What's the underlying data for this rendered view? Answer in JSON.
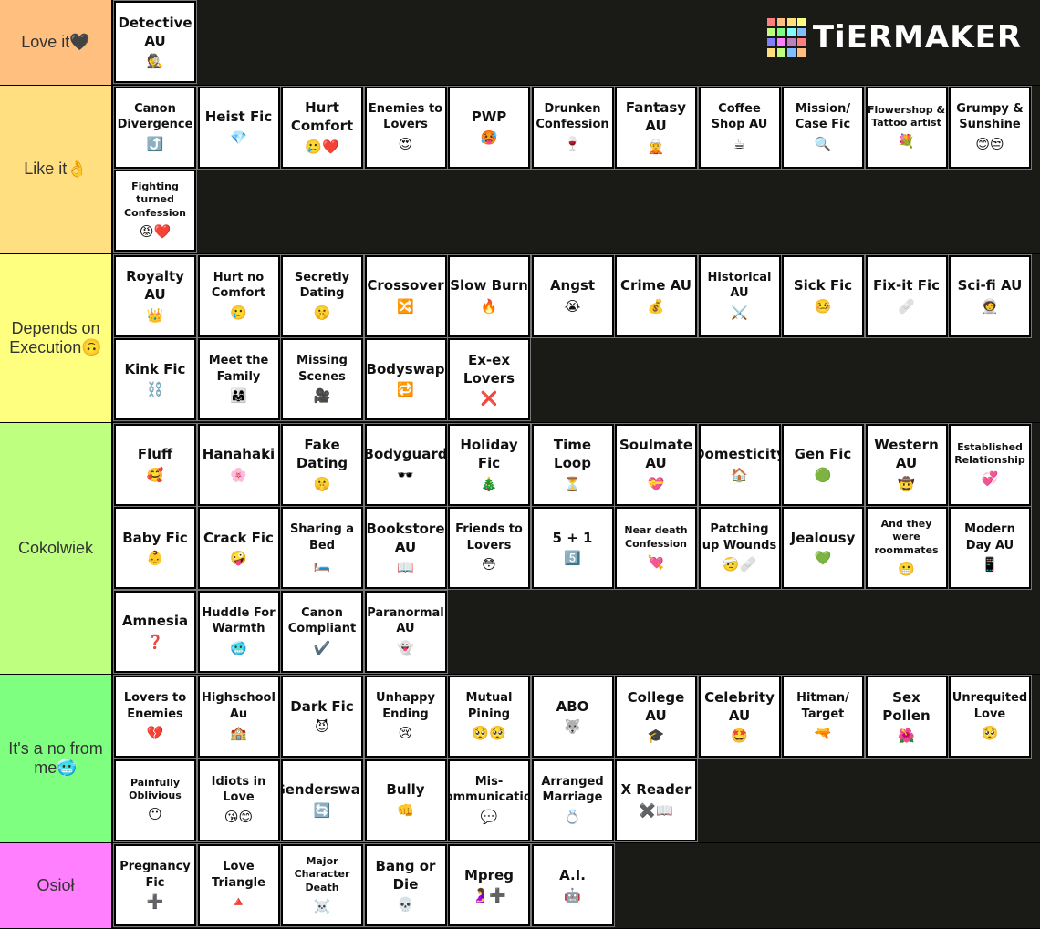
{
  "logo": "TiERMAKER",
  "tiers": [
    {
      "label": "Love it🖤",
      "color": "#ffbf7f",
      "items": [
        {
          "text": "Detective AU",
          "emoji": "🕵️"
        }
      ]
    },
    {
      "label": "Like it👌",
      "color": "#ffdf7f",
      "items": [
        {
          "text": "Canon Divergence",
          "emoji": "⤴️"
        },
        {
          "text": "Heist Fic",
          "emoji": "💎"
        },
        {
          "text": "Hurt Comfort",
          "emoji": "🥲❤️"
        },
        {
          "text": "Enemies to Lovers",
          "emoji": "😍"
        },
        {
          "text": "PWP",
          "emoji": "🥵"
        },
        {
          "text": "Drunken Confession",
          "emoji": "🍷"
        },
        {
          "text": "Fantasy AU",
          "emoji": "🧝"
        },
        {
          "text": "Coffee Shop AU",
          "emoji": "☕"
        },
        {
          "text": "Mission/ Case Fic",
          "emoji": "🔍"
        },
        {
          "text": "Flowershop & Tattoo artist",
          "emoji": "💐"
        },
        {
          "text": "Grumpy & Sunshine",
          "emoji": "😊😒"
        },
        {
          "text": "Fighting turned Confession",
          "emoji": "😡❤️"
        }
      ]
    },
    {
      "label": "Depends on Execution🙃",
      "color": "#ffff7f",
      "items": [
        {
          "text": "Royalty AU",
          "emoji": "👑"
        },
        {
          "text": "Hurt no Comfort",
          "emoji": "🥲"
        },
        {
          "text": "Secretly Dating",
          "emoji": "🤫"
        },
        {
          "text": "Crossover",
          "emoji": "🔀"
        },
        {
          "text": "Slow Burn",
          "emoji": "🔥"
        },
        {
          "text": "Angst",
          "emoji": "😭"
        },
        {
          "text": "Crime AU",
          "emoji": "💰"
        },
        {
          "text": "Historical AU",
          "emoji": "⚔️"
        },
        {
          "text": "Sick Fic",
          "emoji": "🤒"
        },
        {
          "text": "Fix-it Fic",
          "emoji": "🩹"
        },
        {
          "text": "Sci-fi AU",
          "emoji": "🧑‍🚀"
        },
        {
          "text": "Kink Fic",
          "emoji": "⛓️"
        },
        {
          "text": "Meet the Family",
          "emoji": "👨‍👩‍👧"
        },
        {
          "text": "Missing Scenes",
          "emoji": "🎥"
        },
        {
          "text": "Bodyswap",
          "emoji": "🔁"
        },
        {
          "text": "Ex-ex Lovers",
          "emoji": "❌"
        }
      ]
    },
    {
      "label": "Cokolwiek",
      "color": "#bfff7f",
      "items": [
        {
          "text": "Fluff",
          "emoji": "🥰"
        },
        {
          "text": "Hanahaki",
          "emoji": "🌸"
        },
        {
          "text": "Fake Dating",
          "emoji": "🤫"
        },
        {
          "text": "Bodyguard",
          "emoji": "🕶️"
        },
        {
          "text": "Holiday Fic",
          "emoji": "🎄"
        },
        {
          "text": "Time Loop",
          "emoji": "⏳"
        },
        {
          "text": "Soulmate AU",
          "emoji": "💝"
        },
        {
          "text": "Domesticity",
          "emoji": "🏠"
        },
        {
          "text": "Gen Fic",
          "emoji": "🟢"
        },
        {
          "text": "Western AU",
          "emoji": "🤠"
        },
        {
          "text": "Established Relationship",
          "emoji": "💞"
        },
        {
          "text": "Baby Fic",
          "emoji": "👶"
        },
        {
          "text": "Crack Fic",
          "emoji": "🤪"
        },
        {
          "text": "Sharing a Bed",
          "emoji": "🛏️"
        },
        {
          "text": "Bookstore AU",
          "emoji": "📖"
        },
        {
          "text": "Friends to Lovers",
          "emoji": "😳"
        },
        {
          "text": "5 + 1",
          "emoji": "5️⃣"
        },
        {
          "text": "Near death Confession",
          "emoji": "💘"
        },
        {
          "text": "Patching up Wounds",
          "emoji": "🤕🩹"
        },
        {
          "text": "Jealousy",
          "emoji": "💚"
        },
        {
          "text": "And they were roommates",
          "emoji": "😬"
        },
        {
          "text": "Modern Day AU",
          "emoji": "📱"
        },
        {
          "text": "Amnesia",
          "emoji": "❓"
        },
        {
          "text": "Huddle For Warmth",
          "emoji": "🥶"
        },
        {
          "text": "Canon Compliant",
          "emoji": "✔️"
        },
        {
          "text": "Paranormal AU",
          "emoji": "👻"
        }
      ]
    },
    {
      "label": "It's a no from me🥶",
      "color": "#7fff7f",
      "items": [
        {
          "text": "Lovers to Enemies",
          "emoji": "💔"
        },
        {
          "text": "Highschool Au",
          "emoji": "🏫"
        },
        {
          "text": "Dark Fic",
          "emoji": "😈"
        },
        {
          "text": "Unhappy Ending",
          "emoji": "😢"
        },
        {
          "text": "Mutual Pining",
          "emoji": "🥺🥺"
        },
        {
          "text": "ABO",
          "emoji": "🐺"
        },
        {
          "text": "College AU",
          "emoji": "🎓"
        },
        {
          "text": "Celebrity AU",
          "emoji": "🤩"
        },
        {
          "text": "Hitman/ Target",
          "emoji": "🔫"
        },
        {
          "text": "Sex Pollen",
          "emoji": "🌺"
        },
        {
          "text": "Unrequited Love",
          "emoji": "🥺"
        },
        {
          "text": "Painfully Oblivious",
          "emoji": "😶"
        },
        {
          "text": "Idiots in Love",
          "emoji": "😘😊"
        },
        {
          "text": "Genderswap",
          "emoji": "🔄"
        },
        {
          "text": "Bully",
          "emoji": "👊"
        },
        {
          "text": "Mis-communication",
          "emoji": "💬"
        },
        {
          "text": "Arranged Marriage",
          "emoji": "💍"
        },
        {
          "text": "X Reader",
          "emoji": "✖️📖"
        }
      ]
    },
    {
      "label": "Osioł",
      "color": "#ff7fff",
      "items": [
        {
          "text": "Pregnancy Fic",
          "emoji": "➕"
        },
        {
          "text": "Love Triangle",
          "emoji": "🔺"
        },
        {
          "text": "Major Character Death",
          "emoji": "☠️"
        },
        {
          "text": "Bang or Die",
          "emoji": "💀"
        },
        {
          "text": "Mpreg",
          "emoji": "🤰➕"
        },
        {
          "text": "A.I.",
          "emoji": "🤖"
        }
      ]
    }
  ]
}
